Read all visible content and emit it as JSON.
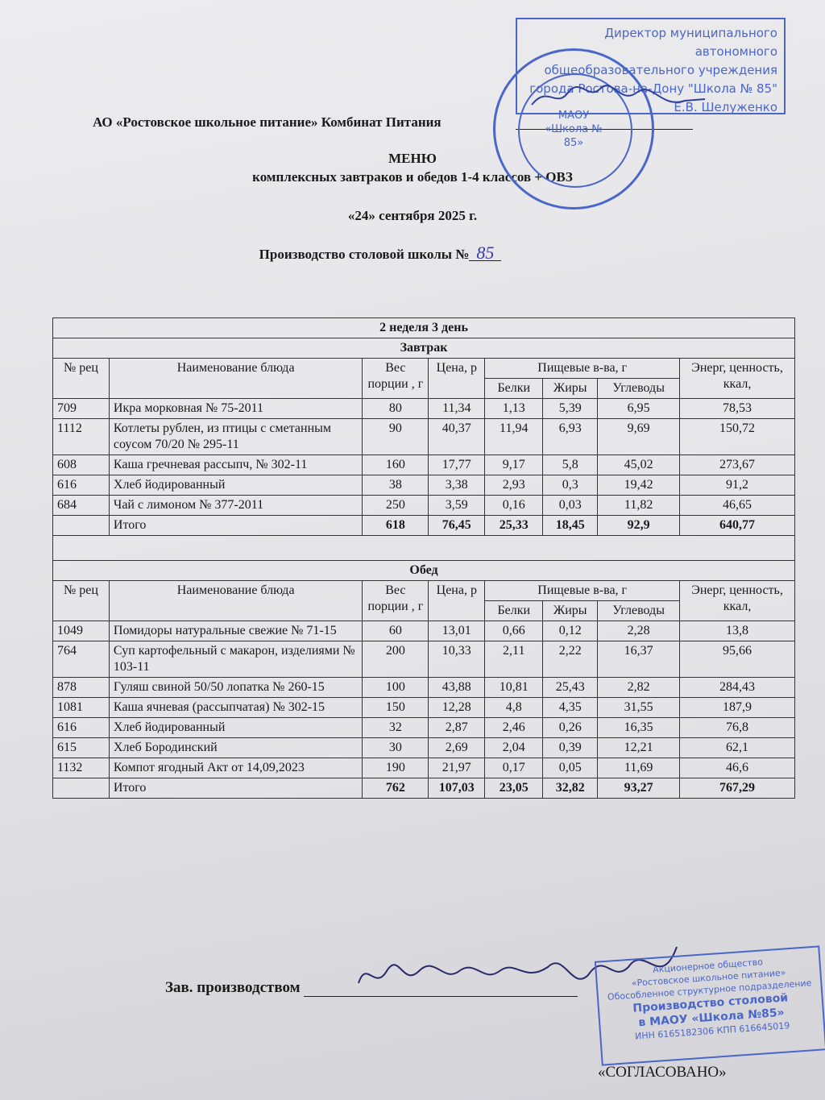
{
  "header": {
    "organization": "АО «Ростовское школьное питание» Комбинат Питания",
    "title": "МЕНЮ",
    "subtitle": "комплексных завтраков и обедов 1-4 классов + ОВЗ",
    "date": "«24» сентября 2025 г.",
    "production_label": "Производство столовой школы №",
    "school_number_handwritten": "85"
  },
  "stamp_director": {
    "lines": [
      "Директор муниципального автономного",
      "общеобразовательного учреждения",
      "города Ростова-на-Дону \"Школа № 85\"",
      "Е.В. Шелуженко"
    ],
    "round_seal": [
      "МАОУ",
      "«Школа № 85»"
    ]
  },
  "table": {
    "week_day": "2 неделя 3 день",
    "columns": {
      "rec": "№ рец",
      "name": "Наименование блюда",
      "weight": "Вес порции , г",
      "price": "Цена, р",
      "nutrients": "Пищевые в-ва, г",
      "protein": "Белки",
      "fat": "Жиры",
      "carbs": "Углеводы",
      "energy": "Энерг, ценность, ккал,"
    },
    "sections": [
      {
        "title": "Завтрак",
        "rows": [
          [
            "709",
            "Икра морковная № 75-2011",
            "80",
            "11,34",
            "1,13",
            "5,39",
            "6,95",
            "78,53"
          ],
          [
            "1112",
            "Котлеты рублен, из птицы с сметанным соусом 70/20 № 295-11",
            "90",
            "40,37",
            "11,94",
            "6,93",
            "9,69",
            "150,72"
          ],
          [
            "608",
            "Каша гречневая рассыпч, № 302-11",
            "160",
            "17,77",
            "9,17",
            "5,8",
            "45,02",
            "273,67"
          ],
          [
            "616",
            "Хлеб йодированный",
            "38",
            "3,38",
            "2,93",
            "0,3",
            "19,42",
            "91,2"
          ],
          [
            "684",
            "Чай с лимоном № 377-2011",
            "250",
            "3,59",
            "0,16",
            "0,03",
            "11,82",
            "46,65"
          ]
        ],
        "total": [
          "",
          "Итого",
          "618",
          "76,45",
          "25,33",
          "18,45",
          "92,9",
          "640,77"
        ]
      },
      {
        "title": "Обед",
        "rows": [
          [
            "1049",
            "Помидоры натуральные свежие № 71-15",
            "60",
            "13,01",
            "0,66",
            "0,12",
            "2,28",
            "13,8"
          ],
          [
            "764",
            "Суп картофельный с макарон, изделиями № 103-11",
            "200",
            "10,33",
            "2,11",
            "2,22",
            "16,37",
            "95,66"
          ],
          [
            "878",
            "Гуляш свиной 50/50 лопатка № 260-15",
            "100",
            "43,88",
            "10,81",
            "25,43",
            "2,82",
            "284,43"
          ],
          [
            "1081",
            "Каша ячневая (рассыпчатая) № 302-15",
            "150",
            "12,28",
            "4,8",
            "4,35",
            "31,55",
            "187,9"
          ],
          [
            "616",
            "Хлеб йодированный",
            "32",
            "2,87",
            "2,46",
            "0,26",
            "16,35",
            "76,8"
          ],
          [
            "615",
            "Хлеб Бородинский",
            "30",
            "2,69",
            "2,04",
            "0,39",
            "12,21",
            "62,1"
          ],
          [
            "1132",
            "Компот ягодный Акт от 14,09,2023",
            "190",
            "21,97",
            "0,17",
            "0,05",
            "11,69",
            "46,6"
          ]
        ],
        "total": [
          "",
          "Итого",
          "762",
          "107,03",
          "23,05",
          "32,82",
          "93,27",
          "767,29"
        ]
      }
    ]
  },
  "footer": {
    "signoff_label": "Зав. производством",
    "agreed": "«СОГЛАСОВАНО»",
    "stamp_lines": [
      "Акционерное общество",
      "«Ростовское школьное питание»",
      "Обособленное структурное подразделение"
    ],
    "stamp_bold": [
      "Производство столовой",
      "в МАОУ «Школа №85»"
    ],
    "stamp_inn": "ИНН 6165182306   КПП 616645019"
  },
  "colors": {
    "stamp_ink": "#4a66c8",
    "text": "#1a1a1a",
    "paper": "#e6e6ea"
  }
}
